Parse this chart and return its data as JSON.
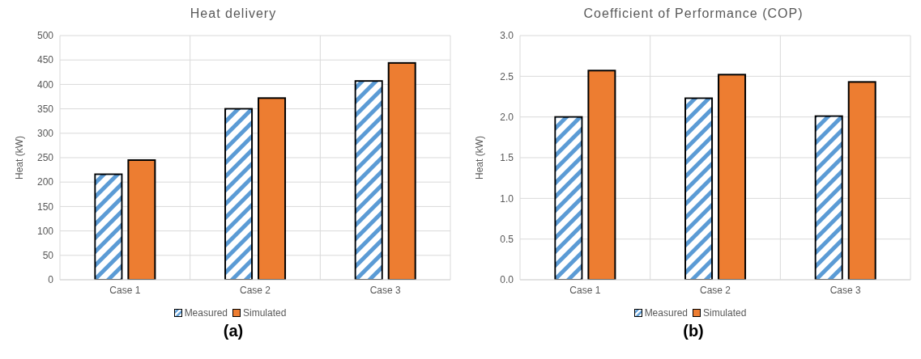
{
  "chart_data": [
    {
      "type": "bar",
      "title": "Heat delivery",
      "ylabel": "Heat (kW)",
      "categories": [
        "Case 1",
        "Case 2",
        "Case 3"
      ],
      "series": [
        {
          "name": "Measured",
          "color": "#5b9bd5",
          "values": [
            216,
            350,
            407
          ]
        },
        {
          "name": "Simulated",
          "color": "#ed7d31",
          "values": [
            245,
            372,
            444
          ]
        }
      ],
      "ylim": [
        0,
        500
      ],
      "yticks": [
        0,
        50,
        100,
        150,
        200,
        250,
        300,
        350,
        400,
        450,
        500
      ],
      "grid": true,
      "legend": "bottom",
      "annotations": [
        "(a)"
      ]
    },
    {
      "type": "bar",
      "title": "Coefficient of Performance (COP)",
      "ylabel": "Heat (kW)",
      "categories": [
        "Case 1",
        "Case 2",
        "Case 3"
      ],
      "series": [
        {
          "name": "Measured",
          "color": "#5b9bd5",
          "values": [
            2.0,
            2.23,
            2.01
          ]
        },
        {
          "name": "Simulated",
          "color": "#ed7d31",
          "values": [
            2.57,
            2.52,
            2.43
          ]
        }
      ],
      "ylim": [
        0,
        3
      ],
      "yticks": [
        {
          "value": 0,
          "label": "0.0"
        },
        {
          "value": 0.5,
          "label": "0.5"
        },
        {
          "value": 1,
          "label": "1.0"
        },
        {
          "value": 1.5,
          "label": "1.5"
        },
        {
          "value": 2,
          "label": "2.0"
        },
        {
          "value": 2.5,
          "label": "2.5"
        },
        {
          "value": 3,
          "label": "3.0"
        }
      ],
      "grid": true,
      "legend": "bottom",
      "annotations": [
        "(b)"
      ]
    }
  ]
}
